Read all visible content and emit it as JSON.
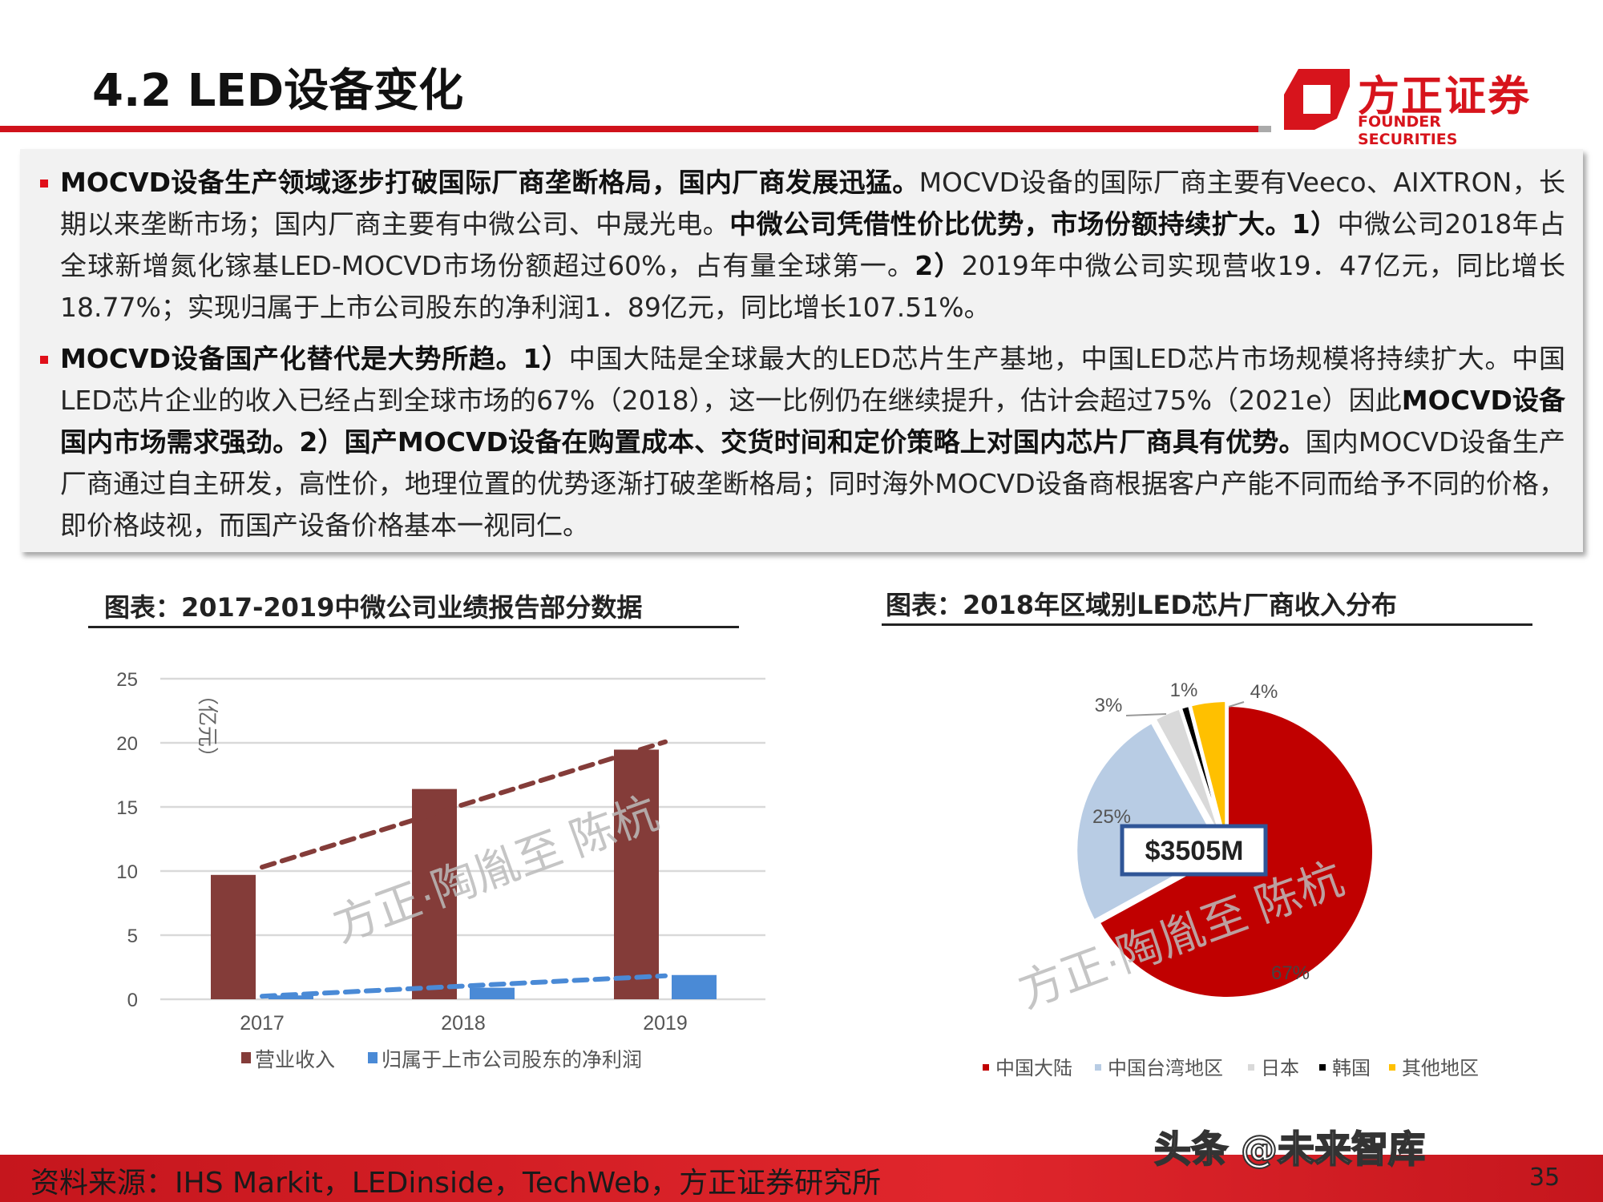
{
  "header": {
    "title": "4.2 LED设备变化",
    "logo_cn": "方正证券",
    "logo_en": "FOUNDER SECURITIES",
    "accent": "#d0121b"
  },
  "paragraphs": [
    {
      "segments": [
        {
          "text": "MOCVD设备生产领域逐步打破国际厂商垄断格局，国内厂商发展迅猛。",
          "bold": true
        },
        {
          "text": "MOCVD设备的国际厂商主要有Veeco、AIXTRON，长期以来垄断市场；国内厂商主要有中微公司、中晟光电。",
          "bold": false
        },
        {
          "text": "中微公司凭借性价比优势，市场份额持续扩大。1）",
          "bold": true
        },
        {
          "text": "中微公司2018年占全球新增氮化镓基LED-MOCVD市场份额超过60%，占有量全球第一。",
          "bold": false
        },
        {
          "text": "2）",
          "bold": true
        },
        {
          "text": "2019年中微公司实现营收19．47亿元，同比增长18.77%；实现归属于上市公司股东的净利润1．89亿元，同比增长107.51%。",
          "bold": false
        }
      ]
    },
    {
      "segments": [
        {
          "text": "MOCVD设备国产化替代是大势所趋。1）",
          "bold": true
        },
        {
          "text": "中国大陆是全球最大的LED芯片生产基地，中国LED芯片市场规模将持续扩大。中国LED芯片企业的收入已经占到全球市场的67%（2018），这一比例仍在继续提升，估计会超过75%（2021e）因此",
          "bold": false
        },
        {
          "text": "MOCVD设备国内市场需求强劲。2）国产MOCVD设备在购置成本、交货时间和定价策略上对国内芯片厂商具有优势。",
          "bold": true
        },
        {
          "text": "国内MOCVD设备生产厂商通过自主研发，高性价，地理位置的优势逐渐打破垄断格局；同时海外MOCVD设备商根据客户产能不同而给予不同的价格，即价格歧视，而国产设备价格基本一视同仁。",
          "bold": false
        }
      ]
    }
  ],
  "chart_data": [
    {
      "type": "bar",
      "title": "图表：2017-2019中微公司业绩报告部分数据",
      "ylabel": "（亿元）",
      "categories": [
        "2017",
        "2018",
        "2019"
      ],
      "ylim": [
        0,
        25
      ],
      "yticks": [
        "0",
        "5",
        "10",
        "15",
        "20",
        "25"
      ],
      "grid": true,
      "legend": "bottom",
      "trendlines": "dashed linear, per series",
      "series": [
        {
          "name": "营业收入",
          "values": [
            9.7,
            16.4,
            19.47
          ],
          "color": "#843c39"
        },
        {
          "name": "归属于上市公司股东的净利润",
          "values": [
            0.3,
            0.9,
            1.89
          ],
          "color": "#4a8ad6"
        }
      ]
    },
    {
      "type": "pie",
      "title": "图表：2018年区域别LED芯片厂商收入分布",
      "center_label": "$3505M",
      "legend": "bottom",
      "slices": [
        {
          "name": "中国大陆",
          "value": 67,
          "label": "67%",
          "color": "#c00000"
        },
        {
          "name": "中国台湾地区",
          "value": 25,
          "label": "25%",
          "color": "#b8cce4"
        },
        {
          "name": "日本",
          "value": 3,
          "label": "3%",
          "color": "#d9d9d9"
        },
        {
          "name": "韩国",
          "value": 1,
          "label": "1%",
          "color": "#000000"
        },
        {
          "name": "其他地区",
          "value": 4,
          "label": "4%",
          "color": "#ffc000"
        }
      ]
    }
  ],
  "watermark": "方正·陶胤至 陈杭",
  "footer": {
    "source": "资料来源：IHS Markit，LEDinside，TechWeb，方正证券研究所",
    "page": "35",
    "overlay": "头条 @未来智库"
  }
}
